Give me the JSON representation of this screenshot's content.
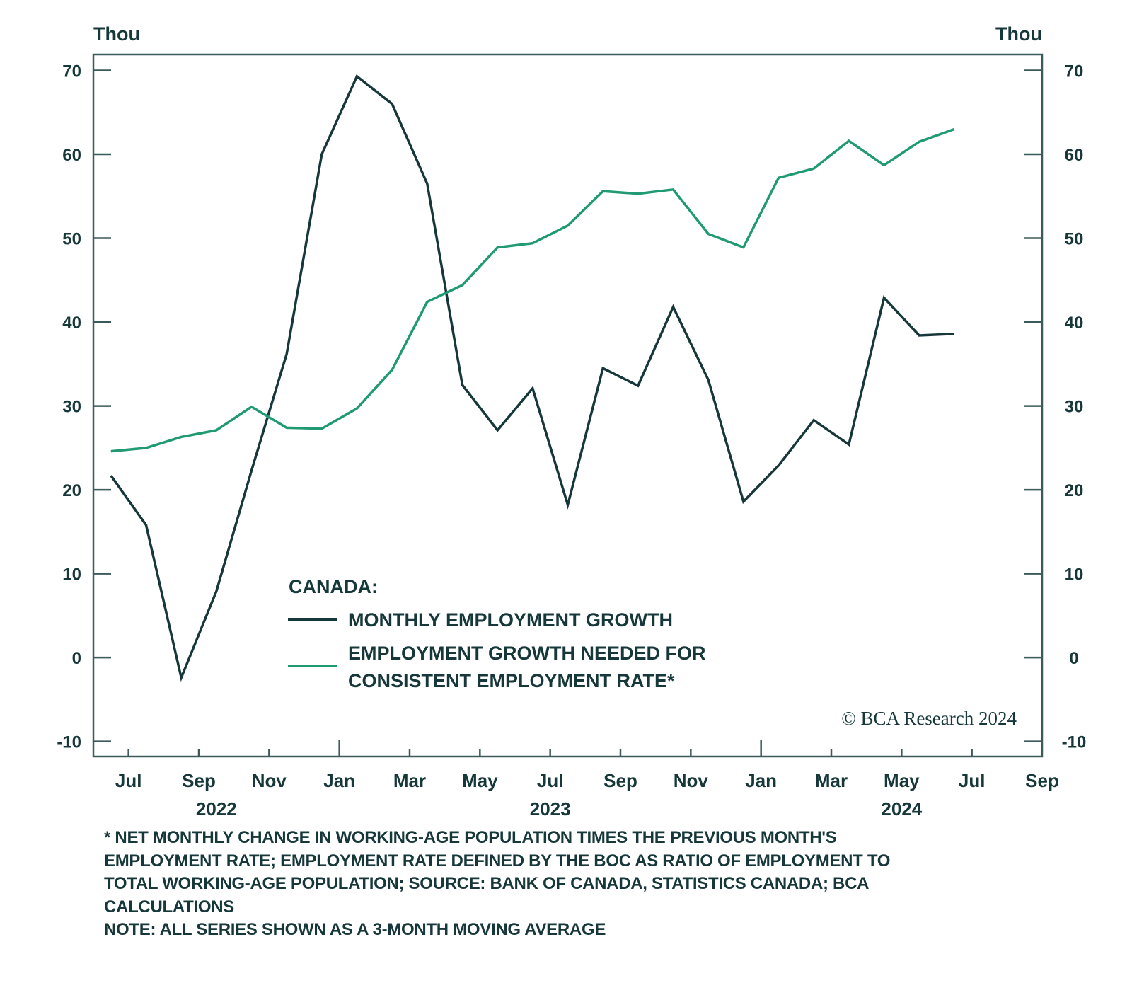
{
  "chart_data": {
    "type": "line",
    "title": "",
    "left_axis_unit": "Thou",
    "right_axis_unit": "Thou",
    "ylim": [
      -11.8,
      71.9
    ],
    "yticks": [
      -10,
      0,
      10,
      20,
      30,
      40,
      50,
      60,
      70
    ],
    "ytick_labels": [
      "-10",
      "0",
      "10",
      "20",
      "30",
      "40",
      "50",
      "60",
      "70"
    ],
    "xlim": [
      "2022-06",
      "2024-09"
    ],
    "xticks": [
      {
        "label": "Jul",
        "month_index": 1
      },
      {
        "label": "Sep",
        "month_index": 3
      },
      {
        "label": "Nov",
        "month_index": 5
      },
      {
        "label": "Jan",
        "month_index": 7,
        "major": true
      },
      {
        "label": "Mar",
        "month_index": 9
      },
      {
        "label": "May",
        "month_index": 11
      },
      {
        "label": "Jul",
        "month_index": 13
      },
      {
        "label": "Sep",
        "month_index": 15
      },
      {
        "label": "Nov",
        "month_index": 17
      },
      {
        "label": "Jan",
        "month_index": 19,
        "major": true
      },
      {
        "label": "Mar",
        "month_index": 21
      },
      {
        "label": "May",
        "month_index": 23
      },
      {
        "label": "Jul",
        "month_index": 25
      },
      {
        "label": "Sep",
        "month_index": 27
      }
    ],
    "year_labels": [
      {
        "label": "2022",
        "month_index": 3.5
      },
      {
        "label": "2023",
        "month_index": 13
      },
      {
        "label": "2024",
        "month_index": 23
      }
    ],
    "x": [
      "2022-06",
      "2022-07",
      "2022-08",
      "2022-09",
      "2022-10",
      "2022-11",
      "2022-12",
      "2023-01",
      "2023-02",
      "2023-03",
      "2023-04",
      "2023-05",
      "2023-06",
      "2023-07",
      "2023-08",
      "2023-09",
      "2023-10",
      "2023-11",
      "2023-12",
      "2024-01",
      "2024-02",
      "2024-03",
      "2024-04",
      "2024-05",
      "2024-06"
    ],
    "series": [
      {
        "name": "MONTHLY EMPLOYMENT GROWTH",
        "color": "#17383a",
        "values": [
          21.7,
          15.8,
          -2.4,
          7.9,
          22.3,
          36.2,
          60.0,
          69.3,
          66.0,
          56.5,
          32.5,
          27.1,
          32.1,
          18.2,
          34.5,
          32.4,
          41.8,
          33.1,
          18.6,
          22.9,
          28.3,
          25.4,
          42.9,
          38.4,
          38.6
        ]
      },
      {
        "name": "EMPLOYMENT GROWTH NEEDED FOR CONSISTENT EMPLOYMENT RATE*",
        "color": "#1f9a72",
        "values": [
          24.6,
          25.0,
          26.3,
          27.1,
          29.9,
          27.4,
          27.3,
          29.7,
          34.3,
          42.4,
          44.4,
          48.9,
          49.4,
          51.5,
          55.6,
          55.3,
          55.8,
          50.5,
          48.9,
          57.2,
          58.3,
          61.6,
          58.7,
          61.5,
          63.0
        ]
      }
    ],
    "legend": {
      "title": "CANADA:",
      "placement": "lower-center",
      "entries": [
        {
          "lines": [
            "MONTHLY EMPLOYMENT GROWTH"
          ],
          "color": "#17383a"
        },
        {
          "lines": [
            "EMPLOYMENT GROWTH NEEDED FOR",
            "CONSISTENT EMPLOYMENT RATE*"
          ],
          "color": "#1f9a72"
        }
      ]
    },
    "grid": false,
    "copyright": "© BCA Research 2024"
  },
  "footnote": [
    "* NET MONTHLY CHANGE IN WORKING-AGE POPULATION TIMES THE PREVIOUS MONTH'S",
    "EMPLOYMENT RATE; EMPLOYMENT RATE DEFINED BY THE BOC AS RATIO OF EMPLOYMENT TO",
    "TOTAL WORKING-AGE POPULATION; SOURCE: BANK OF CANADA, STATISTICS CANADA; BCA",
    "CALCULATIONS",
    "NOTE: ALL SERIES SHOWN AS A 3-MONTH MOVING AVERAGE"
  ]
}
